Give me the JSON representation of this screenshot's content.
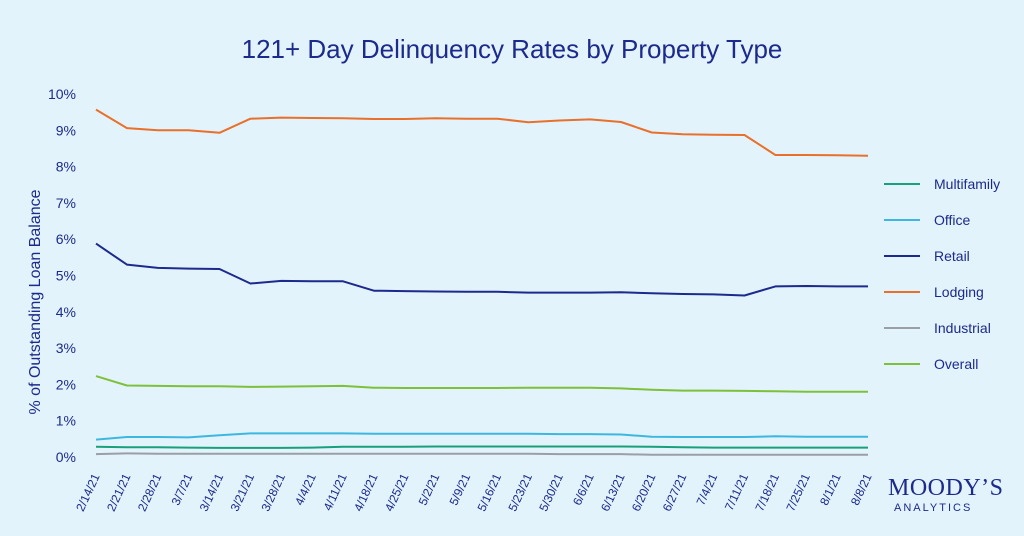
{
  "chart_data": {
    "type": "line",
    "title": "121+ Day Delinquency Rates by Property Type",
    "xlabel": "",
    "ylabel": "% of Outstanding Loan Balance",
    "ylim": [
      0,
      10
    ],
    "yticks": [
      "0%",
      "1%",
      "2%",
      "3%",
      "4%",
      "5%",
      "6%",
      "7%",
      "8%",
      "9%",
      "10%"
    ],
    "grid": false,
    "legend_position": "right",
    "categories": [
      "2/14/21",
      "2/21/21",
      "2/28/21",
      "3/7/21",
      "3/14/21",
      "3/21/21",
      "3/28/21",
      "4/4/21",
      "4/11/21",
      "4/18/21",
      "4/25/21",
      "5/2/21",
      "5/9/21",
      "5/16/21",
      "5/23/21",
      "5/30/21",
      "6/6/21",
      "6/13/21",
      "6/20/21",
      "6/27/21",
      "7/4/21",
      "7/11/21",
      "7/18/21",
      "7/25/21",
      "8/1/21",
      "8/8/21"
    ],
    "series": [
      {
        "name": "Multifamily",
        "color": "#17a07a",
        "values": [
          0.28,
          0.27,
          0.27,
          0.26,
          0.25,
          0.25,
          0.25,
          0.26,
          0.28,
          0.28,
          0.28,
          0.29,
          0.29,
          0.29,
          0.29,
          0.29,
          0.29,
          0.29,
          0.28,
          0.27,
          0.26,
          0.26,
          0.26,
          0.26,
          0.26,
          0.26
        ]
      },
      {
        "name": "Office",
        "color": "#3cb8e0",
        "values": [
          0.48,
          0.55,
          0.55,
          0.54,
          0.6,
          0.65,
          0.65,
          0.65,
          0.65,
          0.64,
          0.64,
          0.64,
          0.64,
          0.64,
          0.64,
          0.63,
          0.63,
          0.62,
          0.56,
          0.55,
          0.55,
          0.55,
          0.57,
          0.56,
          0.56,
          0.56
        ]
      },
      {
        "name": "Retail",
        "color": "#1b2a8c",
        "values": [
          5.88,
          5.3,
          5.21,
          5.19,
          5.18,
          4.78,
          4.85,
          4.84,
          4.84,
          4.58,
          4.57,
          4.56,
          4.55,
          4.55,
          4.53,
          4.53,
          4.53,
          4.54,
          4.51,
          4.49,
          4.48,
          4.45,
          4.7,
          4.71,
          4.7,
          4.7
        ]
      },
      {
        "name": "Lodging",
        "color": "#e8702a",
        "values": [
          9.57,
          9.06,
          9.0,
          9.0,
          8.93,
          9.32,
          9.35,
          9.34,
          9.33,
          9.31,
          9.31,
          9.33,
          9.32,
          9.32,
          9.22,
          9.27,
          9.3,
          9.23,
          8.94,
          8.89,
          8.88,
          8.87,
          8.32,
          8.32,
          8.31,
          8.3
        ]
      },
      {
        "name": "Industrial",
        "color": "#9a9ea6",
        "values": [
          0.08,
          0.1,
          0.09,
          0.09,
          0.09,
          0.09,
          0.09,
          0.09,
          0.09,
          0.09,
          0.09,
          0.09,
          0.09,
          0.09,
          0.09,
          0.08,
          0.08,
          0.08,
          0.06,
          0.06,
          0.06,
          0.06,
          0.06,
          0.06,
          0.06,
          0.06
        ]
      },
      {
        "name": "Overall",
        "color": "#7dc13a",
        "values": [
          2.23,
          1.97,
          1.96,
          1.95,
          1.95,
          1.93,
          1.94,
          1.95,
          1.96,
          1.91,
          1.9,
          1.9,
          1.9,
          1.9,
          1.91,
          1.91,
          1.91,
          1.89,
          1.85,
          1.83,
          1.83,
          1.82,
          1.81,
          1.8,
          1.8,
          1.8
        ]
      }
    ]
  },
  "brand": {
    "name": "MOODY’S",
    "sub": "ANALYTICS"
  }
}
